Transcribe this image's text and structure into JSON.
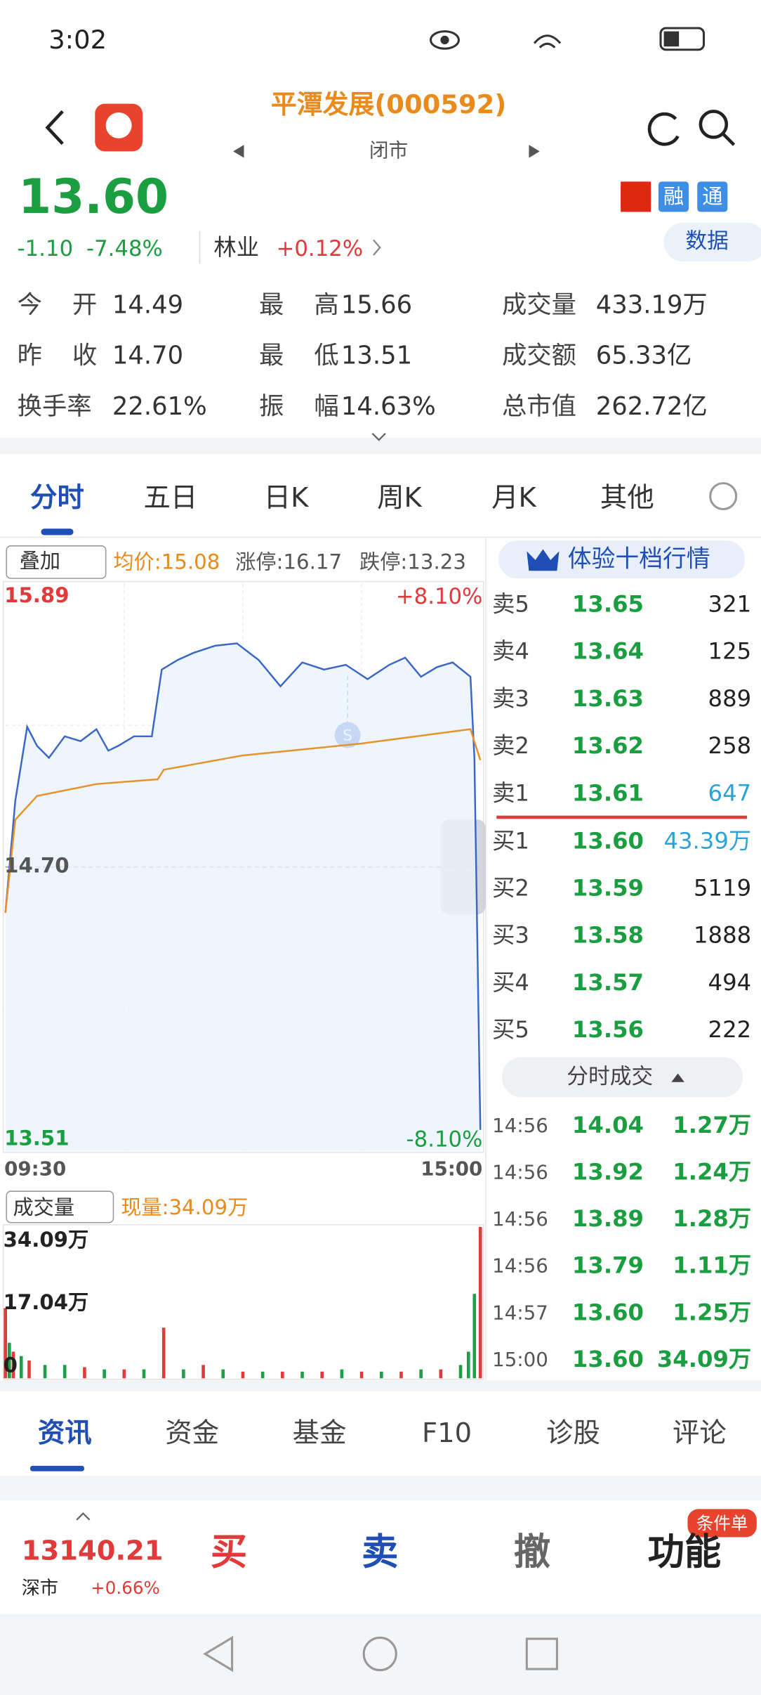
{
  "status": {
    "time": "3:02"
  },
  "header": {
    "title": "平潭发展(000592)",
    "status": "闭市"
  },
  "quote": {
    "price": "13.60",
    "change": "-1.10",
    "change_pct": "-7.48%",
    "sector": "林业",
    "sector_change": "+0.12%",
    "badges": [
      "融",
      "通"
    ],
    "data_button": "数据"
  },
  "stats": [
    [
      "今开",
      "14.49"
    ],
    [
      "最高",
      "15.66"
    ],
    [
      "成交量",
      "433.19万"
    ],
    [
      "昨收",
      "14.70"
    ],
    [
      "最低",
      "13.51"
    ],
    [
      "成交额",
      "65.33亿"
    ],
    [
      "换手率",
      "22.61%"
    ],
    [
      "振幅",
      "14.63%"
    ],
    [
      "总市值",
      "262.72亿"
    ]
  ],
  "tabs": [
    "分时",
    "五日",
    "日K",
    "周K",
    "月K",
    "其他"
  ],
  "chart": {
    "overlay": "叠加",
    "avg_price": "均价:15.08",
    "limit_up": "涨停:16.17",
    "limit_down": "跌停:13.23",
    "top_label": "15.89",
    "mid_label": "14.70",
    "bottom_label": "13.51",
    "top_pct": "+8.10%",
    "bottom_pct": "-8.10%",
    "start_time": "09:30",
    "end_time": "15:00",
    "xlim": [
      0,
      240
    ],
    "ylim": [
      13.51,
      15.89
    ],
    "t": [
      0,
      5,
      11,
      16,
      22,
      30,
      38,
      46,
      52,
      57,
      65,
      74,
      79,
      87,
      95,
      106,
      117,
      128,
      139,
      150,
      161,
      172,
      183,
      194,
      202,
      210,
      218,
      226,
      235,
      237,
      240
    ],
    "price": [
      14.51,
      14.98,
      15.29,
      15.21,
      15.16,
      15.25,
      15.23,
      15.28,
      15.19,
      15.21,
      15.25,
      15.25,
      15.53,
      15.57,
      15.6,
      15.63,
      15.64,
      15.57,
      15.46,
      15.56,
      15.53,
      15.55,
      15.49,
      15.55,
      15.58,
      15.5,
      15.54,
      15.56,
      15.5,
      15.16,
      13.6
    ],
    "avg_t": [
      0,
      5,
      16,
      46,
      77,
      80,
      120,
      180,
      235,
      240
    ],
    "avg": [
      14.51,
      14.9,
      15.0,
      15.05,
      15.07,
      15.11,
      15.17,
      15.22,
      15.28,
      15.15
    ]
  },
  "volume": {
    "selector": "成交量",
    "current": "现量:34.09万",
    "top_label": "34.09万",
    "mid_label": "17.04万",
    "zero_label": "0",
    "ylim": [
      0,
      34.09
    ],
    "t": [
      0,
      2,
      4,
      8,
      12,
      20,
      30,
      40,
      50,
      60,
      70,
      80,
      90,
      100,
      110,
      120,
      130,
      140,
      150,
      160,
      170,
      180,
      190,
      200,
      210,
      220,
      230,
      234,
      237,
      240
    ],
    "values": [
      15.8,
      8,
      6,
      5,
      4,
      3,
      3,
      2.5,
      2,
      2,
      2,
      11.4,
      2,
      3,
      2,
      1.5,
      1.5,
      1.5,
      1.5,
      1.5,
      2,
      1.5,
      1.5,
      1.5,
      2,
      2,
      3,
      6,
      19,
      34.09
    ],
    "colors": [
      "#e03a3a",
      "#1e9e46",
      "#e03a3a",
      "#1e9e46",
      "#e03a3a",
      "#1e9e46",
      "#1e9e46",
      "#e03a3a",
      "#1e9e46",
      "#e03a3a",
      "#1e9e46",
      "#e03a3a",
      "#1e9e46",
      "#e03a3a",
      "#1e9e46",
      "#e03a3a",
      "#1e9e46",
      "#e03a3a",
      "#1e9e46",
      "#e03a3a",
      "#1e9e46",
      "#e03a3a",
      "#1e9e46",
      "#e03a3a",
      "#1e9e46",
      "#e03a3a",
      "#1e9e46",
      "#1e9e46",
      "#1e9e46",
      "#e03a3a"
    ]
  },
  "order_book": {
    "button": "体验十档行情",
    "sells": [
      {
        "label": "卖5",
        "price": "13.65",
        "volume": "321"
      },
      {
        "label": "卖4",
        "price": "13.64",
        "volume": "125"
      },
      {
        "label": "卖3",
        "price": "13.63",
        "volume": "889"
      },
      {
        "label": "卖2",
        "price": "13.62",
        "volume": "258"
      },
      {
        "label": "卖1",
        "price": "13.61",
        "volume": "647"
      }
    ],
    "buys": [
      {
        "label": "买1",
        "price": "13.60",
        "volume": "43.39万"
      },
      {
        "label": "买2",
        "price": "13.59",
        "volume": "5119"
      },
      {
        "label": "买3",
        "price": "13.58",
        "volume": "1888"
      },
      {
        "label": "买4",
        "price": "13.57",
        "volume": "494"
      },
      {
        "label": "买5",
        "price": "13.56",
        "volume": "222"
      }
    ],
    "trades_button": "分时成交",
    "trades": [
      {
        "time": "14:56",
        "price": "14.04",
        "volume": "1.27万"
      },
      {
        "time": "14:56",
        "price": "13.92",
        "volume": "1.24万"
      },
      {
        "time": "14:56",
        "price": "13.89",
        "volume": "1.28万"
      },
      {
        "time": "14:56",
        "price": "13.79",
        "volume": "1.11万"
      },
      {
        "time": "14:57",
        "price": "13.60",
        "volume": "1.25万"
      },
      {
        "time": "15:00",
        "price": "13.60",
        "volume": "34.09万"
      }
    ]
  },
  "bottom_tabs": [
    "资讯",
    "资金",
    "基金",
    "F10",
    "诊股",
    "评论"
  ],
  "footer": {
    "index": "13140.21",
    "market": "深市",
    "index_change": "+0.66%",
    "actions": [
      "买",
      "卖",
      "撤",
      "功能"
    ],
    "badge": "条件单"
  }
}
